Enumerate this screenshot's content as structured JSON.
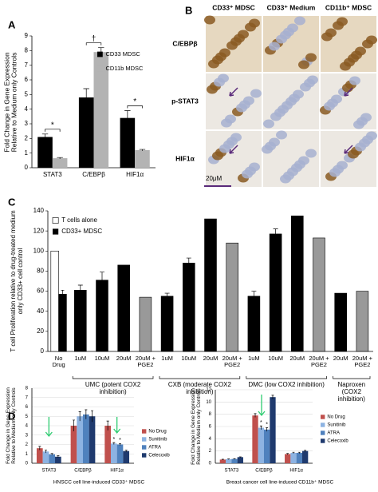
{
  "panel_labels": [
    "A",
    "B",
    "C",
    "D"
  ],
  "micrograph": {
    "columns": [
      "CD33⁺ MDSC",
      "CD33⁺ Medium",
      "CD11b⁺ MDSC"
    ],
    "rows": [
      "C/EBPβ",
      "p-STAT3",
      "HIF1α"
    ],
    "scale_bar": "20μM"
  },
  "chart_data": [
    {
      "type": "bar",
      "y_label": "Fold Change in Gene Expression Relative to Medium only Controls",
      "categories": [
        "STAT3",
        "C/EBPβ",
        "HIF1α"
      ],
      "series": [
        {
          "name": "CD33 MDSC",
          "color": "#000000",
          "values": [
            2.1,
            4.8,
            3.4
          ],
          "errors": [
            0.2,
            0.6,
            0.5
          ]
        },
        {
          "name": "CD11b MDSC",
          "color": "#b3b3b3",
          "values": [
            0.65,
            7.9,
            1.2
          ],
          "errors": [
            0.05,
            0.3,
            0.05
          ]
        }
      ],
      "ylim": [
        0,
        9
      ],
      "yticks": [
        0,
        1,
        2,
        3,
        4,
        5,
        6,
        7,
        8,
        9
      ],
      "grid": false,
      "significance": [
        {
          "label": "*",
          "category": 0
        },
        {
          "label": "†",
          "category": 1
        },
        {
          "label": "*",
          "category": 2
        }
      ]
    },
    {
      "type": "bar",
      "y_label": "T cell Proliferation relative to drug-treated medium only CD33+ cell control",
      "categories": [
        "No Drug",
        "1uM",
        "10uM",
        "20uM",
        "20uM + PGE2",
        "1uM",
        "10uM",
        "20uM",
        "20uM + PGE2",
        "1uM",
        "10uM",
        "20uM",
        "20uM + PGE2",
        "20uM",
        "20uM + PGE2"
      ],
      "series": [
        {
          "name": "T cells alone",
          "color": "#ffffff",
          "values": [
            100,
            null,
            null,
            null,
            null,
            null,
            null,
            null,
            null,
            null,
            null,
            null,
            null,
            null,
            null
          ]
        },
        {
          "name": "CD33+ MDSC",
          "color": "#000000",
          "values": [
            57,
            61,
            71,
            86,
            54,
            55,
            88,
            132,
            108,
            55,
            117,
            135,
            113,
            58,
            60
          ],
          "colors": [
            "#000000",
            "#000000",
            "#000000",
            "#000000",
            "#999999",
            "#000000",
            "#000000",
            "#000000",
            "#999999",
            "#000000",
            "#000000",
            "#000000",
            "#999999",
            "#000000",
            "#999999"
          ],
          "errors": [
            4,
            5,
            8,
            null,
            null,
            3,
            5,
            null,
            null,
            5,
            5,
            null,
            null,
            null,
            null
          ]
        }
      ],
      "groups": [
        {
          "label": "UMC (potent COX2 inhibition)",
          "span": [
            1,
            4
          ]
        },
        {
          "label": "CXB (moderate COX2 inhibition)",
          "span": [
            5,
            8
          ]
        },
        {
          "label": "DMC (low COX2 inhibition)",
          "span": [
            9,
            12
          ]
        },
        {
          "label": "Naproxen (COX2 inhibition)",
          "span": [
            13,
            14
          ]
        }
      ],
      "ylim": [
        0,
        140
      ],
      "yticks": [
        0,
        20,
        40,
        60,
        80,
        100,
        120,
        140
      ],
      "grid": false
    },
    {
      "type": "bar",
      "y_label": "Fold Change in Gene Expression Relative to Medium only Controls",
      "x_label": "HNSCC cell line-induced CD33⁺ MDSC",
      "categories": [
        "STAT3",
        "C/EBPβ",
        "HIF1α"
      ],
      "series": [
        {
          "name": "No Drug",
          "color": "#c0504d",
          "values": [
            1.6,
            4.0,
            4.0
          ],
          "errors": [
            0.2,
            0.6,
            0.5
          ]
        },
        {
          "name": "Sunitinib",
          "color": "#8db3e2",
          "values": [
            1.25,
            5.0,
            2.1
          ],
          "errors": [
            0.15,
            0.5,
            0.1
          ]
        },
        {
          "name": "ATRA",
          "color": "#4f81bd",
          "values": [
            0.95,
            5.2,
            2.0
          ],
          "errors": [
            0.1,
            0.5,
            0.1
          ]
        },
        {
          "name": "Celecoxib",
          "color": "#1f3a6e",
          "values": [
            0.7,
            5.0,
            1.3
          ],
          "errors": [
            0.1,
            0.6,
            0.1
          ]
        }
      ],
      "ylim": [
        0,
        8
      ],
      "yticks": [
        0,
        1,
        2,
        3,
        4,
        5,
        6,
        7,
        8
      ],
      "grid": true,
      "significance": [
        {
          "label": "*",
          "category": 2,
          "series": 1
        },
        {
          "label": "*",
          "category": 2,
          "series": 2
        }
      ]
    },
    {
      "type": "bar",
      "y_label": "Fold Change in Gene Expression Relative to Medium only Controls",
      "x_label": "Breast cancer cell line-induced CD11b⁺ MDSC",
      "categories": [
        "STAT3",
        "C/EBPβ",
        "HIF1α"
      ],
      "series": [
        {
          "name": "No Drug",
          "color": "#c0504d",
          "values": [
            0.6,
            7.8,
            1.5
          ],
          "errors": [
            0.05,
            0.3,
            0.1
          ]
        },
        {
          "name": "Sunitinib",
          "color": "#8db3e2",
          "values": [
            0.65,
            5.8,
            1.7
          ],
          "errors": [
            0.05,
            0.3,
            0.1
          ]
        },
        {
          "name": "ATRA",
          "color": "#4f81bd",
          "values": [
            0.7,
            5.5,
            1.7
          ],
          "errors": [
            0.05,
            0.3,
            0.1
          ]
        },
        {
          "name": "Celecoxib",
          "color": "#1f3a6e",
          "values": [
            1.0,
            10.8,
            2.0
          ],
          "errors": [
            0.05,
            0.3,
            0.1
          ]
        }
      ],
      "ylim": [
        0,
        12
      ],
      "yticks": [
        0,
        2,
        4,
        6,
        8,
        10,
        12
      ],
      "grid": true,
      "significance": [
        {
          "label": "*",
          "category": 1,
          "series": 1
        },
        {
          "label": "*",
          "category": 1,
          "series": 2
        }
      ]
    }
  ]
}
